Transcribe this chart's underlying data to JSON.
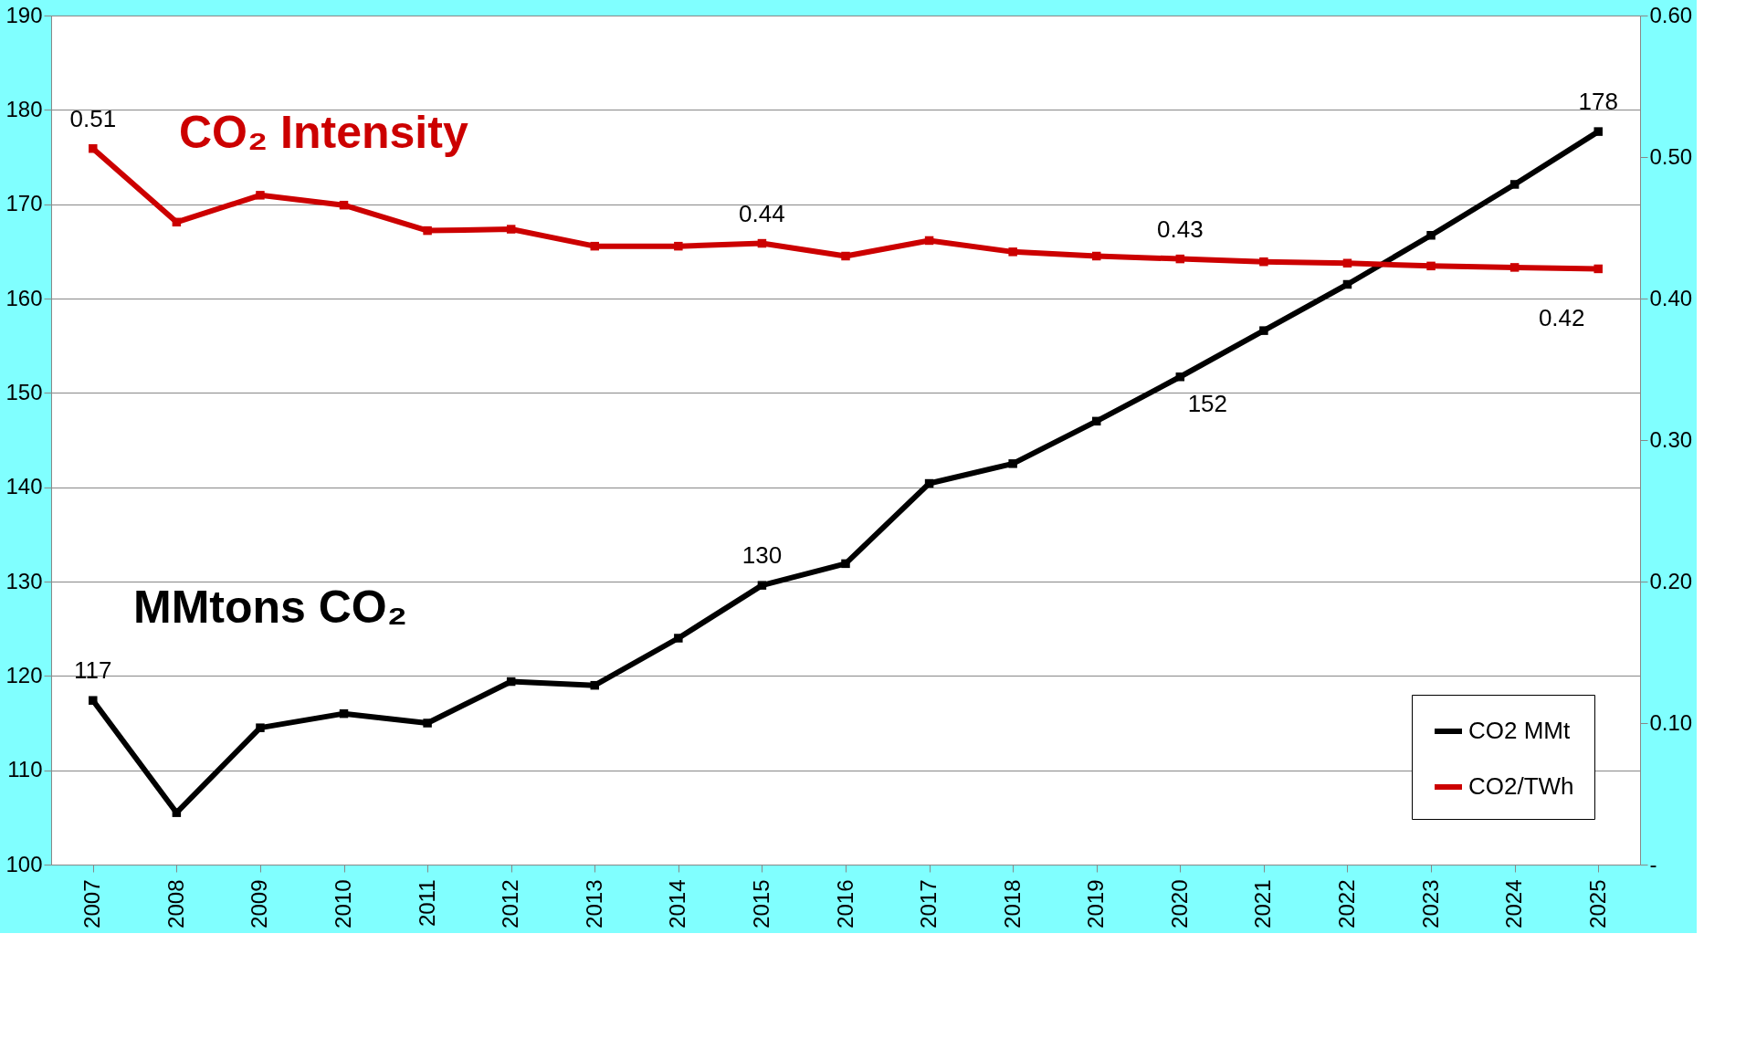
{
  "chart_data": {
    "type": "line",
    "categories": [
      "2007",
      "2008",
      "2009",
      "2010",
      "2011",
      "2012",
      "2013",
      "2014",
      "2015",
      "2016",
      "2017",
      "2018",
      "2019",
      "2020",
      "2021",
      "2022",
      "2023",
      "2024",
      "2025"
    ],
    "series": [
      {
        "name": "CO2 MMt",
        "color": "#000000",
        "values": [
          117.4,
          105.5,
          114.5,
          116,
          115,
          119.4,
          119,
          124,
          129.6,
          131.9,
          140.4,
          142.5,
          147,
          151.7,
          156.6,
          161.5,
          166.7,
          172.1,
          177.7
        ],
        "value_labels": [
          "117",
          null,
          null,
          null,
          null,
          null,
          null,
          null,
          "130",
          null,
          null,
          null,
          null,
          "152",
          null,
          null,
          null,
          null,
          "178"
        ]
      },
      {
        "name": "CO2/TWh",
        "color": "#cc0000",
        "axis": "y2",
        "values": [
          0.506,
          0.454,
          0.473,
          0.466,
          0.448,
          0.449,
          0.437,
          0.437,
          0.439,
          0.43,
          0.441,
          0.433,
          0.43,
          0.428,
          0.426,
          0.425,
          0.423,
          0.422,
          0.421
        ],
        "value_labels": [
          "0.51",
          null,
          null,
          null,
          null,
          null,
          null,
          null,
          "0.44",
          null,
          null,
          null,
          null,
          "0.43",
          null,
          null,
          null,
          null,
          "0.42"
        ]
      }
    ],
    "annotations": [
      "CO₂ Intensity",
      "MMtons CO₂"
    ],
    "ylim": [
      100,
      190
    ],
    "yticks": [
      100,
      110,
      120,
      130,
      140,
      150,
      160,
      170,
      180,
      190
    ],
    "y2lim": [
      0,
      0.6
    ],
    "y2ticks": [
      {
        "value": 0,
        "label": "-"
      },
      {
        "value": 0.1,
        "label": "0.10"
      },
      {
        "value": 0.2,
        "label": "0.20"
      },
      {
        "value": 0.3,
        "label": "0.30"
      },
      {
        "value": 0.4,
        "label": "0.40"
      },
      {
        "value": 0.5,
        "label": "0.50"
      },
      {
        "value": 0.6,
        "label": "0.60"
      }
    ],
    "grid": "y",
    "legend": "bottom right",
    "marker": "square",
    "line_style": "solid"
  }
}
